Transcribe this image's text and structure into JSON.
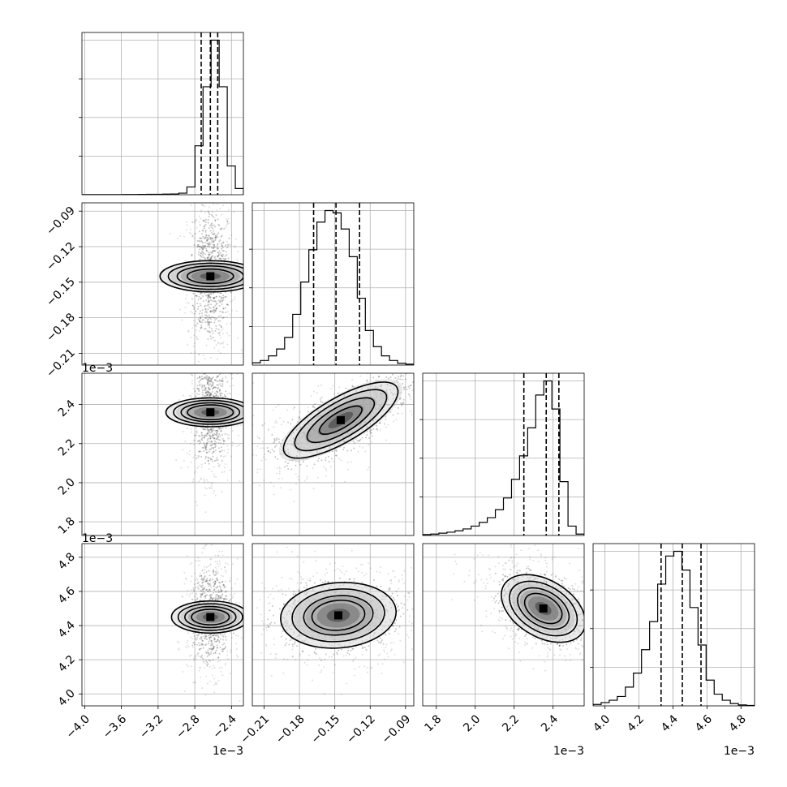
{
  "chart_data": {
    "type": "corner",
    "title": "",
    "grid": true,
    "parameters": [
      {
        "xticks": [
          "−4.0",
          "−3.6",
          "−3.2",
          "−2.8",
          "−2.4"
        ],
        "xtick_values": [
          -4.0,
          -3.6,
          -3.2,
          -2.8,
          -2.4
        ],
        "range": [
          -4.03,
          -2.27
        ],
        "offset_label": "1e−3",
        "quantiles": [
          -2.73,
          -2.63,
          -2.55
        ],
        "hist_edges": [
          -4.03,
          -3.942,
          -3.854,
          -3.766,
          -3.678,
          -3.59,
          -3.502,
          -3.414,
          -3.326,
          -3.238,
          -3.15,
          -3.062,
          -2.974,
          -2.886,
          -2.798,
          -2.71,
          -2.622,
          -2.534,
          -2.446,
          -2.358,
          -2.27
        ],
        "hist_counts": [
          0.2,
          0.2,
          0.2,
          0.2,
          0.2,
          0.3,
          0.3,
          0.4,
          0.5,
          0.6,
          0.8,
          1,
          2,
          10,
          63,
          139,
          199,
          139,
          37,
          8
        ]
      },
      {
        "xticks": [
          "−0.21",
          "−0.18",
          "−0.15",
          "−0.12",
          "−0.09"
        ],
        "xtick_values": [
          -0.21,
          -0.18,
          -0.15,
          -0.12,
          -0.09
        ],
        "yticks": [
          "−0.21",
          "−0.18",
          "−0.15",
          "−0.12",
          "−0.09"
        ],
        "range": [
          -0.22,
          -0.083
        ],
        "quantiles": [
          -0.168,
          -0.149,
          -0.129
        ],
        "hist_edges": [
          -0.22,
          -0.21315,
          -0.2063,
          -0.19945,
          -0.1926,
          -0.18575,
          -0.1789,
          -0.17205,
          -0.1652,
          -0.15835,
          -0.1515,
          -0.14465,
          -0.1378,
          -0.13095,
          -0.1241,
          -0.11725,
          -0.1104,
          -0.10355,
          -0.0967,
          -0.08985,
          -0.083
        ],
        "hist_counts": [
          5,
          10,
          20,
          35,
          60,
          110,
          180,
          250,
          310,
          335,
          330,
          295,
          235,
          145,
          75,
          40,
          20,
          10,
          4,
          2
        ]
      },
      {
        "xticks": [
          "1.8",
          "2.0",
          "2.2",
          "2.4"
        ],
        "xtick_values": [
          1.8,
          2.0,
          2.2,
          2.4
        ],
        "yticks": [
          "1.8",
          "2.0",
          "2.2",
          "2.4"
        ],
        "range": [
          1.73,
          2.56
        ],
        "offset_label": "1e−3",
        "quantiles": [
          2.25,
          2.365,
          2.43
        ],
        "hist_edges": [
          1.73,
          1.7715,
          1.813,
          1.8545,
          1.896,
          1.9375,
          1.979,
          2.0205,
          2.062,
          2.1035,
          2.145,
          2.1865,
          2.228,
          2.2695,
          2.311,
          2.3525,
          2.394,
          2.4355,
          2.477,
          2.5185,
          2.56
        ],
        "hist_counts": [
          2,
          3,
          5,
          7,
          10,
          14,
          20,
          28,
          38,
          55,
          80,
          120,
          170,
          230,
          300,
          330,
          270,
          115,
          20,
          3
        ]
      },
      {
        "xticks": [
          "4.0",
          "4.2",
          "4.4",
          "4.6",
          "4.8"
        ],
        "xtick_values": [
          4.0,
          4.2,
          4.4,
          4.6,
          4.8
        ],
        "yticks": [
          "4.0",
          "4.2",
          "4.4",
          "4.6",
          "4.8"
        ],
        "range": [
          3.93,
          4.88
        ],
        "offset_label": "1e−3",
        "quantiles": [
          4.33,
          4.455,
          4.565
        ],
        "hist_edges": [
          3.93,
          3.9775,
          4.025,
          4.0725,
          4.12,
          4.1675,
          4.215,
          4.2625,
          4.31,
          4.3575,
          4.405,
          4.4525,
          4.5,
          4.5475,
          4.595,
          4.6425,
          4.69,
          4.7375,
          4.785,
          4.8325,
          4.88
        ],
        "hist_counts": [
          3,
          7,
          12,
          20,
          40,
          70,
          120,
          180,
          260,
          320,
          330,
          290,
          210,
          130,
          55,
          25,
          12,
          5,
          2,
          1
        ]
      }
    ],
    "pairs": [
      {
        "xi": 0,
        "yi": 1,
        "center": [
          -2.63,
          -0.145
        ],
        "sd": [
          0.1,
          0.025
        ],
        "rho": 0.0,
        "bend": 0,
        "contour_scale": [
          0.78,
          1.12,
          1.42,
          1.7
        ]
      },
      {
        "xi": 0,
        "yi": 2,
        "center": [
          -2.63,
          2.36
        ],
        "sd": [
          0.09,
          0.13
        ],
        "rho": 0.0,
        "bend": 0,
        "contour_scale": [
          0.9,
          1.15,
          1.45,
          1.75
        ]
      },
      {
        "xi": 1,
        "yi": 2,
        "center": [
          -0.145,
          2.32
        ],
        "sd": [
          0.03,
          0.12
        ],
        "rho": 0.75,
        "bend": -14,
        "contour_scale": [
          0.6,
          0.95,
          1.3,
          1.62
        ]
      },
      {
        "xi": 0,
        "yi": 3,
        "center": [
          -2.63,
          4.45
        ],
        "sd": [
          0.1,
          0.13
        ],
        "rho": 0.0,
        "bend": 0,
        "contour_scale": [
          0.85,
          1.15,
          1.45,
          1.75
        ]
      },
      {
        "xi": 1,
        "yi": 3,
        "center": [
          -0.147,
          4.46
        ],
        "sd": [
          0.028,
          0.11
        ],
        "rho": 0.1,
        "bend": 0,
        "contour_scale": [
          0.8,
          1.05,
          1.4,
          1.75
        ]
      },
      {
        "xi": 2,
        "yi": 3,
        "center": [
          2.35,
          4.5
        ],
        "sd": [
          0.12,
          0.11
        ],
        "rho": -0.4,
        "bend": 0,
        "contour_scale": [
          0.8,
          1.1,
          1.45,
          1.8
        ]
      }
    ]
  }
}
